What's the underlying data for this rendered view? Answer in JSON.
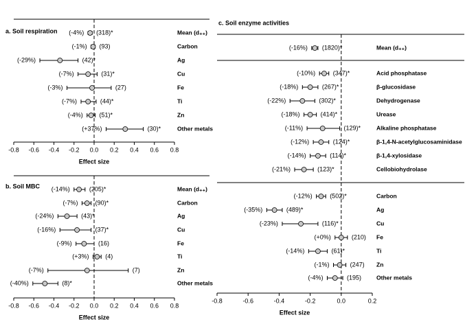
{
  "chart_data": [
    {
      "type": "forest",
      "title": "a. Soil respiration",
      "x_label": "Effect size",
      "categories": [
        "Mean (d₊₊)",
        "Carbon",
        "Ag",
        "Cu",
        "Fe",
        "Ti",
        "Zn",
        "Other metals"
      ],
      "values": [
        -0.04,
        -0.01,
        -0.34,
        -0.06,
        -0.02,
        -0.06,
        -0.03,
        0.31
      ],
      "ci_low": [
        -0.06,
        -0.03,
        -0.54,
        -0.16,
        -0.27,
        -0.13,
        -0.07,
        0.12
      ],
      "ci_high": [
        -0.02,
        0.01,
        -0.16,
        0.03,
        0.17,
        0.02,
        0.01,
        0.49
      ],
      "percent_labels": [
        "(-4%)",
        "(-1%)",
        "(-29%)",
        "(-7%)",
        "(-3%)",
        "(-7%)",
        "(-4%)",
        "(+37%)"
      ],
      "n_labels": [
        "(318)*",
        "(93)",
        "(42)*",
        "(31)*",
        "(27)",
        "(44)*",
        "(51)*",
        "(30)*"
      ],
      "color": "#c8c8c8",
      "xlim": [
        -0.8,
        0.8
      ],
      "xticks": [
        -0.8,
        -0.6,
        -0.4,
        -0.2,
        {
          "value": 0,
          "label": "0.0"
        },
        0.2,
        0.4,
        0.6,
        0.8
      ]
    },
    {
      "type": "forest",
      "title": "b. Soil MBC",
      "x_label": "Effect size",
      "categories": [
        "Mean (d₊₊)",
        "Carbon",
        "Ag",
        "Cu",
        "Fe",
        "Ti",
        "Zn",
        "Other metals"
      ],
      "values": [
        -0.15,
        -0.07,
        -0.27,
        -0.17,
        -0.1,
        0.03,
        -0.07,
        -0.49
      ],
      "ci_low": [
        -0.2,
        -0.12,
        -0.36,
        -0.34,
        -0.18,
        -0.01,
        -0.46,
        -0.61
      ],
      "ci_high": [
        -0.09,
        -0.03,
        -0.17,
        -0.03,
        0.0,
        0.07,
        0.34,
        -0.36
      ],
      "percent_labels": [
        "(-14%)",
        "(-7%)",
        "(-24%)",
        "(-16%)",
        "(-9%)",
        "(+3%)",
        "(-7%)",
        "(-40%)"
      ],
      "n_labels": [
        "(205)*",
        "(90)*",
        "(43)*",
        "(37)*",
        "(16)",
        "(4)",
        "(7)",
        "(8)*"
      ],
      "color": "#c8c8c8",
      "xlim": [
        -0.8,
        0.8
      ],
      "xticks": [
        -0.8,
        -0.6,
        -0.4,
        -0.2,
        {
          "value": 0,
          "label": "0.0"
        },
        0.2,
        0.4,
        0.6,
        0.8
      ]
    },
    {
      "type": "forest",
      "title": "c. Soil enzyme activities",
      "x_label": "Effect size",
      "categories": [
        "Mean (d₊₊)",
        "Acid phosphatase",
        "β-glucosidase",
        "Dehydrogenase",
        "Urease",
        "Alkaline phosphatase",
        "β-1,4-N-acetylglucosaminidase",
        "β-1,4-xylosidase",
        "Cellobiohydrolase",
        "Carbon",
        "Ag",
        "Cu",
        "Fe",
        "Ti",
        "Zn",
        "Other metals"
      ],
      "values": [
        -0.17,
        -0.11,
        -0.2,
        -0.25,
        -0.2,
        -0.12,
        -0.13,
        -0.15,
        -0.24,
        -0.13,
        -0.43,
        -0.26,
        0.0,
        -0.15,
        -0.01,
        -0.04
      ],
      "ci_low": [
        -0.19,
        -0.14,
        -0.25,
        -0.33,
        -0.24,
        -0.22,
        -0.18,
        -0.2,
        -0.3,
        -0.16,
        -0.48,
        -0.38,
        -0.04,
        -0.21,
        -0.05,
        -0.09
      ],
      "ci_high": [
        -0.15,
        -0.08,
        -0.15,
        -0.17,
        -0.16,
        -0.01,
        -0.08,
        -0.1,
        -0.18,
        -0.1,
        -0.38,
        -0.15,
        0.04,
        -0.09,
        0.03,
        0.01
      ],
      "percent_labels": [
        "(-16%)",
        "(-10%)",
        "(-18%)",
        "(-22%)",
        "(-18%)",
        "(-11%)",
        "(-12%)",
        "(-14%)",
        "(-21%)",
        "(-12%)",
        "(-35%)",
        "(-23%)",
        "(+0%)",
        "(-14%)",
        "(-1%)",
        "(-4%)"
      ],
      "n_labels": [
        "(1820)*",
        "(347)*",
        "(267)*",
        "(302)*",
        "(414)*",
        "(129)*",
        "(124)*",
        "(114)*",
        "(123)*",
        "(502)*",
        "(489)*",
        "(116)*",
        "(210)",
        "(61)*",
        "(247)",
        "(195)"
      ],
      "color": "#c8c8c8",
      "xlim": [
        -0.8,
        0.2
      ],
      "xticks": [
        -0.8,
        -0.6,
        -0.4,
        -0.2,
        {
          "value": 0,
          "label": "0.0"
        },
        0.2
      ]
    }
  ]
}
